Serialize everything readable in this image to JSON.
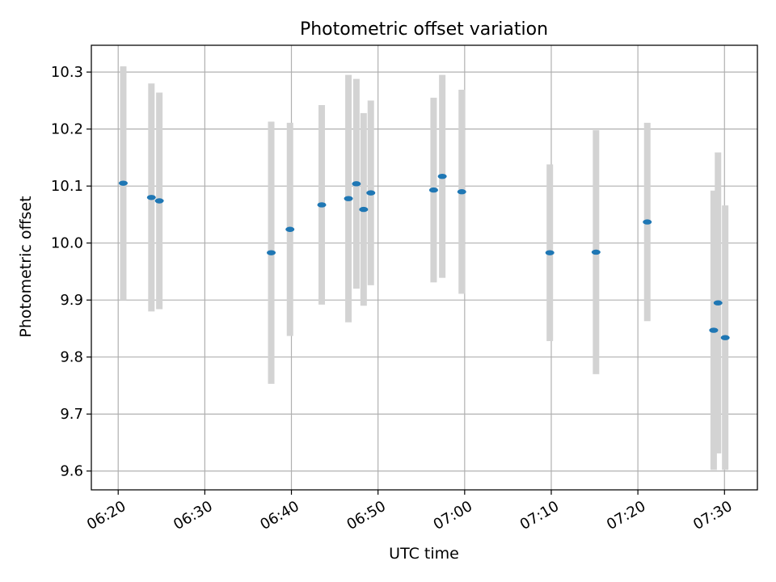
{
  "chart_data": {
    "type": "scatter",
    "title": "Photometric offset variation",
    "xlabel": "UTC time",
    "ylabel": "Photometric offset",
    "x_tick_labels": [
      "06:20",
      "06:30",
      "06:40",
      "06:50",
      "07:00",
      "07:10",
      "07:20",
      "07:30"
    ],
    "x_tick_minutes": [
      380,
      390,
      400,
      410,
      420,
      430,
      440,
      450
    ],
    "xlim_minutes": [
      376.9,
      453.8
    ],
    "ylim": [
      9.567,
      10.347
    ],
    "y_ticks": [
      9.6,
      9.7,
      9.8,
      9.9,
      10.0,
      10.1,
      10.2,
      10.3
    ],
    "y_tick_labels": [
      "9.6",
      "9.7",
      "9.8",
      "9.9",
      "10.0",
      "10.1",
      "10.2",
      "10.3"
    ],
    "grid": true,
    "colors": {
      "marker": "#1f77b4",
      "errorbar": "#d3d3d3",
      "grid": "#b0b0b0"
    },
    "points": [
      {
        "t": "06:20:35",
        "y": 10.105,
        "err": 0.205
      },
      {
        "t": "06:23:50",
        "y": 10.08,
        "err": 0.2
      },
      {
        "t": "06:24:45",
        "y": 10.074,
        "err": 0.19
      },
      {
        "t": "06:37:40",
        "y": 9.983,
        "err": 0.23
      },
      {
        "t": "06:39:50",
        "y": 10.024,
        "err": 0.187
      },
      {
        "t": "06:43:30",
        "y": 10.067,
        "err": 0.175
      },
      {
        "t": "06:46:35",
        "y": 10.078,
        "err": 0.217
      },
      {
        "t": "06:47:30",
        "y": 10.104,
        "err": 0.184
      },
      {
        "t": "06:48:20",
        "y": 10.059,
        "err": 0.169
      },
      {
        "t": "06:49:10",
        "y": 10.088,
        "err": 0.162
      },
      {
        "t": "06:56:25",
        "y": 10.093,
        "err": 0.162
      },
      {
        "t": "06:57:25",
        "y": 10.117,
        "err": 0.178
      },
      {
        "t": "06:59:40",
        "y": 10.09,
        "err": 0.179
      },
      {
        "t": "07:09:50",
        "y": 9.983,
        "err": 0.155
      },
      {
        "t": "07:15:10",
        "y": 9.984,
        "err": 0.214
      },
      {
        "t": "07:21:05",
        "y": 10.037,
        "err": 0.174
      },
      {
        "t": "07:28:45",
        "y": 9.847,
        "err": 0.245
      },
      {
        "t": "07:29:15",
        "y": 9.895,
        "err": 0.264
      },
      {
        "t": "07:30:05",
        "y": 9.834,
        "err": 0.232
      }
    ]
  }
}
